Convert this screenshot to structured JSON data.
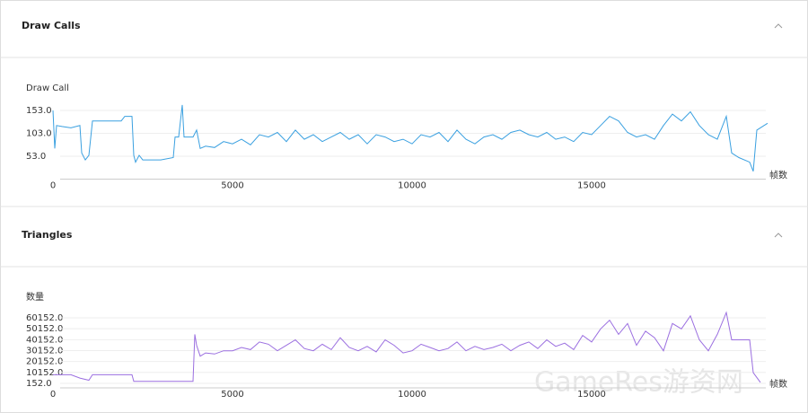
{
  "watermark": "GameRes游资网",
  "chart_data": [
    {
      "type": "line",
      "title": "Draw Calls",
      "y_label": "Draw Call",
      "x_label": "帧数",
      "xlim": [
        0,
        20000
      ],
      "xticks": [
        0,
        5000,
        10000,
        15000
      ],
      "ylim": [
        3,
        183
      ],
      "yticks": [
        {
          "value": 53,
          "label": "53.0"
        },
        {
          "value": 103,
          "label": "103.0"
        },
        {
          "value": 153,
          "label": "153.0"
        }
      ],
      "grid": true,
      "series": [
        {
          "name": "Draw Call",
          "color": "#3aa0e0",
          "x": [
            0,
            50,
            100,
            250,
            500,
            750,
            800,
            900,
            1000,
            1100,
            1500,
            1900,
            2000,
            2200,
            2250,
            2300,
            2400,
            2500,
            3000,
            3350,
            3400,
            3500,
            3600,
            3650,
            3900,
            4000,
            4100,
            4250,
            4500,
            4750,
            5000,
            5250,
            5500,
            5750,
            6000,
            6250,
            6500,
            6750,
            7000,
            7250,
            7500,
            7750,
            8000,
            8250,
            8500,
            8750,
            9000,
            9250,
            9500,
            9750,
            10000,
            10250,
            10500,
            10750,
            11000,
            11250,
            11500,
            11750,
            12000,
            12250,
            12500,
            12750,
            13000,
            13250,
            13500,
            13750,
            14000,
            14250,
            14500,
            14750,
            15000,
            15250,
            15500,
            15750,
            16000,
            16250,
            16500,
            16750,
            17000,
            17250,
            17500,
            17750,
            18000,
            18250,
            18500,
            18750,
            18900,
            19100,
            19400,
            19500,
            19600,
            19800,
            19900
          ],
          "values": [
            153,
            70,
            120,
            118,
            115,
            120,
            60,
            45,
            55,
            130,
            130,
            130,
            140,
            140,
            55,
            40,
            55,
            45,
            45,
            50,
            95,
            95,
            165,
            95,
            95,
            110,
            70,
            75,
            72,
            85,
            80,
            90,
            78,
            100,
            95,
            105,
            85,
            110,
            90,
            100,
            85,
            95,
            105,
            90,
            100,
            80,
            100,
            95,
            85,
            90,
            80,
            100,
            95,
            105,
            85,
            110,
            90,
            80,
            95,
            100,
            90,
            105,
            110,
            100,
            95,
            105,
            90,
            95,
            85,
            105,
            100,
            120,
            140,
            130,
            105,
            95,
            100,
            90,
            120,
            145,
            130,
            150,
            120,
            100,
            90,
            140,
            60,
            50,
            40,
            20,
            110,
            120,
            125
          ]
        }
      ]
    },
    {
      "type": "line",
      "title": "Triangles",
      "y_label": "数量",
      "x_label": "帧数",
      "xlim": [
        0,
        20000
      ],
      "xticks": [
        0,
        5000,
        10000,
        15000
      ],
      "ylim": [
        -4000,
        72000
      ],
      "yticks": [
        {
          "value": 152,
          "label": "152.0"
        },
        {
          "value": 10152,
          "label": "10152.0"
        },
        {
          "value": 20152,
          "label": "20152.0"
        },
        {
          "value": 30152,
          "label": "30152.0"
        },
        {
          "value": 40152,
          "label": "40152.0"
        },
        {
          "value": 50152,
          "label": "50152.0"
        },
        {
          "value": 60152,
          "label": "60152.0"
        }
      ],
      "grid": true,
      "series": [
        {
          "name": "数量",
          "color": "#9b6fe0",
          "x": [
            0,
            500,
            750,
            1000,
            1100,
            2200,
            2250,
            3900,
            3950,
            4000,
            4100,
            4250,
            4500,
            4750,
            5000,
            5250,
            5500,
            5750,
            6000,
            6250,
            6500,
            6750,
            7000,
            7250,
            7500,
            7750,
            8000,
            8250,
            8500,
            8750,
            9000,
            9250,
            9500,
            9750,
            10000,
            10250,
            10500,
            10750,
            11000,
            11250,
            11500,
            11750,
            12000,
            12250,
            12500,
            12750,
            13000,
            13250,
            13500,
            13750,
            14000,
            14250,
            14500,
            14750,
            15000,
            15250,
            15500,
            15750,
            16000,
            16250,
            16500,
            16750,
            17000,
            17250,
            17500,
            17750,
            18000,
            18250,
            18500,
            18750,
            18900,
            19000,
            19400,
            19500,
            19700
          ],
          "values": [
            8000,
            8000,
            5000,
            3000,
            8000,
            8000,
            2000,
            2000,
            45000,
            35000,
            25000,
            28000,
            27000,
            30000,
            30000,
            33000,
            31000,
            38000,
            36000,
            30000,
            35000,
            40000,
            32000,
            30000,
            36000,
            31000,
            42000,
            33000,
            30000,
            34000,
            29000,
            40000,
            35000,
            28000,
            30000,
            36000,
            33000,
            30000,
            32000,
            38000,
            30000,
            34000,
            31000,
            33000,
            36000,
            30000,
            35000,
            38000,
            32000,
            40000,
            34000,
            37000,
            31000,
            44000,
            38000,
            50000,
            58000,
            45000,
            55000,
            35000,
            48000,
            42000,
            30000,
            55000,
            50000,
            62000,
            40000,
            30000,
            45000,
            65000,
            40000,
            40000,
            40000,
            10000,
            1000
          ]
        }
      ]
    }
  ]
}
